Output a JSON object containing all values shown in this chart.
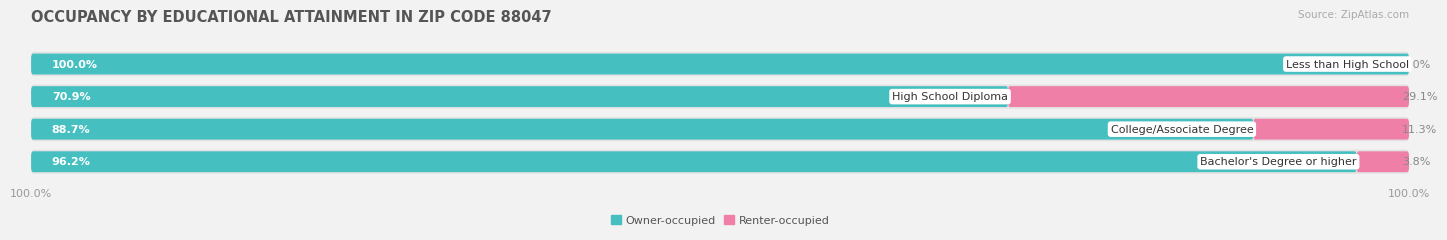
{
  "title": "OCCUPANCY BY EDUCATIONAL ATTAINMENT IN ZIP CODE 88047",
  "source": "Source: ZipAtlas.com",
  "categories": [
    "Less than High School",
    "High School Diploma",
    "College/Associate Degree",
    "Bachelor's Degree or higher"
  ],
  "owner_values": [
    100.0,
    70.9,
    88.7,
    96.2
  ],
  "renter_values": [
    0.0,
    29.1,
    11.3,
    3.8
  ],
  "owner_color": "#45bfc0",
  "renter_color": "#f07fa8",
  "background_color": "#f2f2f2",
  "bar_bg_color": "#e2e2e2",
  "title_fontsize": 10.5,
  "source_fontsize": 7.5,
  "label_fontsize": 8,
  "value_fontsize": 8,
  "tick_fontsize": 8,
  "x_left_label": "100.0%",
  "x_right_label": "100.0%",
  "legend_owner": "Owner-occupied",
  "legend_renter": "Renter-occupied"
}
